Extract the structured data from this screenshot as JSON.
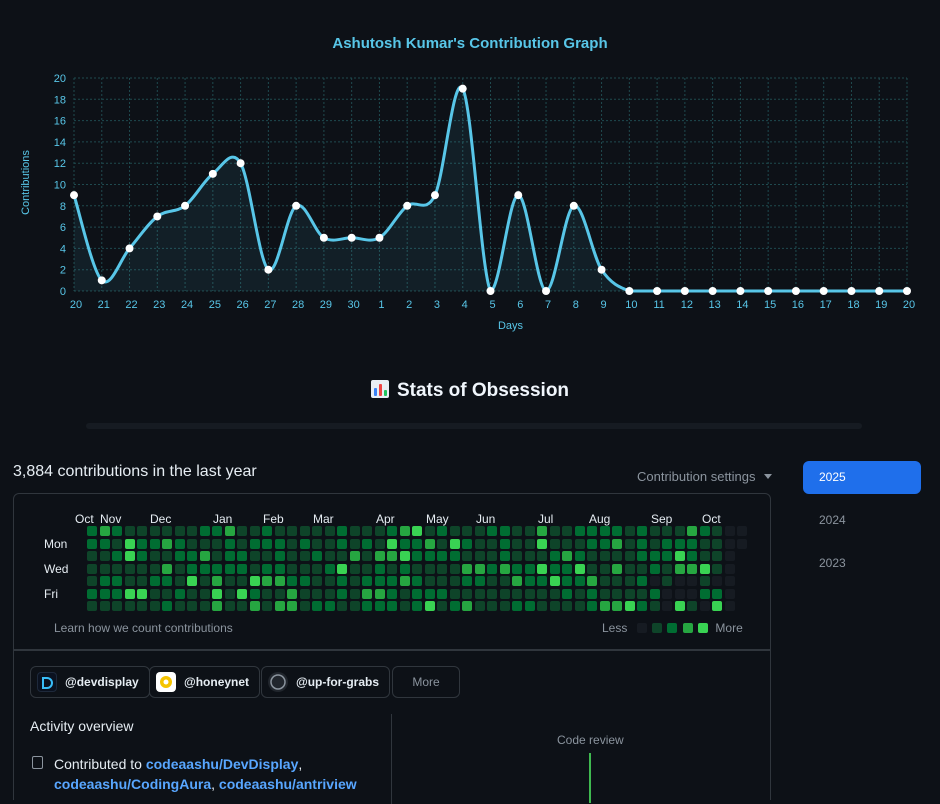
{
  "chart": {
    "title": "Ashutosh Kumar's Contribution Graph",
    "xlabel": "Days",
    "ylabel": "Contributions"
  },
  "chart_data": {
    "type": "area",
    "title": "Ashutosh Kumar's Contribution Graph",
    "xlabel": "Days",
    "ylabel": "Contributions",
    "ylim": [
      0,
      20
    ],
    "yticks": [
      0,
      2,
      4,
      6,
      8,
      10,
      12,
      14,
      16,
      18,
      20
    ],
    "grid": true,
    "categories": [
      "20",
      "21",
      "22",
      "23",
      "24",
      "25",
      "26",
      "27",
      "28",
      "29",
      "30",
      "1",
      "2",
      "3",
      "4",
      "5",
      "6",
      "7",
      "8",
      "9",
      "10",
      "11",
      "12",
      "13",
      "14",
      "15",
      "16",
      "17",
      "18",
      "19",
      "20"
    ],
    "values": [
      9,
      1,
      4,
      7,
      8,
      11,
      12,
      2,
      8,
      5,
      5,
      5,
      8,
      9,
      19,
      0,
      9,
      0,
      8,
      2,
      0,
      0,
      0,
      0,
      0,
      0,
      0,
      0,
      0,
      0,
      0
    ],
    "colors": {
      "line": "#58c6e8",
      "point": "#ffffff",
      "grid": "#1f4a4f"
    }
  },
  "stats": {
    "heading": "Stats of Obsession"
  },
  "calendar": {
    "count_label": "3,884 contributions in the last year",
    "settings_label": "Contribution settings",
    "months": [
      "Oct",
      "Nov",
      "Dec",
      "Jan",
      "Feb",
      "Mar",
      "Apr",
      "May",
      "Jun",
      "Jul",
      "Aug",
      "Sep",
      "Oct"
    ],
    "days": [
      "Mon",
      "Wed",
      "Fri"
    ],
    "learn_label": "Learn how we count contributions",
    "less_label": "Less",
    "more_label": "More",
    "level_colors": [
      "#161b22",
      "#0e4429",
      "#006d32",
      "#26a641",
      "#39d353"
    ]
  },
  "years": [
    "2025",
    "2024",
    "2023"
  ],
  "orgs": [
    {
      "name": "@devdisplay",
      "icon": "devdisplay-logo-icon"
    },
    {
      "name": "@honeynet",
      "icon": "honeynet-logo-icon"
    },
    {
      "name": "@up-for-grabs",
      "icon": "up-for-grabs-logo-icon"
    }
  ],
  "orgs_more_label": "More",
  "activity": {
    "title": "Activity overview",
    "contributed_prefix": "Contributed to ",
    "repos": [
      "codeaashu/DevDisplay",
      "codeaashu/CodingAura",
      "codeaashu/antriview"
    ],
    "code_review_label": "Code review"
  }
}
